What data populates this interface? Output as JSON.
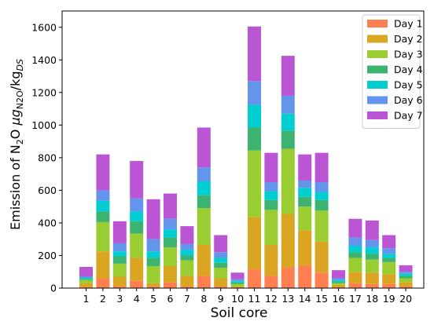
{
  "chart_data": {
    "type": "bar",
    "stacked": true,
    "xlabel": "Soil core",
    "ylabel_parts": {
      "emission": "Emission of N",
      "sub2": "2",
      "o": "O ",
      "mu": "μg",
      "n2o_sub": "N",
      "n2o_sub_tail": "2O",
      "slash": "/kg",
      "ds_sub": "DS"
    },
    "categories": [
      "1",
      "2",
      "3",
      "4",
      "5",
      "6",
      "7",
      "8",
      "9",
      "10",
      "11",
      "12",
      "13",
      "14",
      "15",
      "16",
      "17",
      "18",
      "19",
      "20"
    ],
    "ylim": [
      0,
      1700
    ],
    "yticks": [
      0,
      200,
      400,
      600,
      800,
      1000,
      1200,
      1400,
      1600
    ],
    "grid": false,
    "legend_position": "top-right",
    "series": [
      {
        "name": "Day 1",
        "color": "#ff7f50",
        "values": [
          5,
          60,
          10,
          45,
          10,
          35,
          10,
          75,
          10,
          5,
          115,
          75,
          125,
          140,
          95,
          5,
          30,
          25,
          25,
          10
        ]
      },
      {
        "name": "Day 2",
        "color": "#daa520",
        "values": [
          25,
          165,
          60,
          140,
          20,
          100,
          65,
          190,
          50,
          5,
          320,
          190,
          330,
          215,
          190,
          15,
          70,
          70,
          60,
          25
        ]
      },
      {
        "name": "Day 3",
        "color": "#9acd32",
        "values": [
          20,
          180,
          80,
          150,
          105,
          115,
          95,
          225,
          65,
          15,
          410,
          215,
          400,
          145,
          190,
          10,
          85,
          80,
          75,
          25
        ]
      },
      {
        "name": "Day 4",
        "color": "#3cb371",
        "values": [
          5,
          65,
          45,
          75,
          50,
          60,
          30,
          80,
          30,
          10,
          140,
          60,
          110,
          60,
          65,
          10,
          35,
          35,
          25,
          15
        ]
      },
      {
        "name": "Day 5",
        "color": "#00ced1",
        "values": [
          10,
          65,
          30,
          60,
          40,
          50,
          35,
          85,
          30,
          10,
          140,
          55,
          105,
          55,
          50,
          10,
          40,
          40,
          25,
          15
        ]
      },
      {
        "name": "Day 6",
        "color": "#6495ed",
        "values": [
          5,
          65,
          50,
          80,
          75,
          65,
          35,
          85,
          35,
          10,
          145,
          55,
          110,
          45,
          60,
          10,
          50,
          45,
          35,
          10
        ]
      },
      {
        "name": "Day 7",
        "color": "#ba55d3",
        "values": [
          60,
          220,
          135,
          230,
          245,
          155,
          110,
          245,
          105,
          40,
          335,
          180,
          245,
          160,
          180,
          50,
          115,
          120,
          80,
          40
        ]
      }
    ]
  }
}
